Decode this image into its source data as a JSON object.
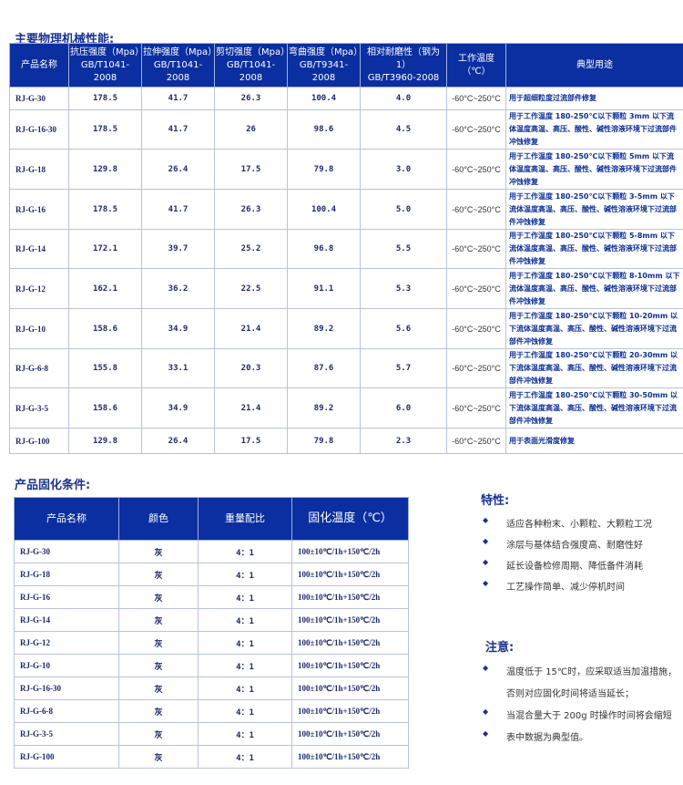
{
  "section1_title": "主要物理机械性能:",
  "table1": {
    "headers": [
      [
        "产品名称",
        ""
      ],
      [
        "抗压强度（Mpa）",
        "GB/T1041-2008"
      ],
      [
        "拉伸强度（Mpa）",
        "GB/T1041-2008"
      ],
      [
        "剪切强度（Mpa）",
        "GB/T1041-2008"
      ],
      [
        "弯曲强度（Mpa）",
        "GB/T9341-2008"
      ],
      [
        "相对耐磨性（钢为 1）",
        "GB/T3960-2008"
      ],
      [
        "工作温度",
        "（℃）"
      ],
      [
        "典型用途",
        ""
      ]
    ],
    "rows": [
      [
        "RJ-G-30",
        "178.5",
        "41.7",
        "26.3",
        "100.4",
        "4.0",
        "-60°C~250°C",
        "用于超细粒度过流部件修复"
      ],
      [
        "RJ-G-16-30",
        "178.5",
        "41.7",
        "26",
        "98.6",
        "4.5",
        "-60°C~250°C",
        "用于工作温度 180-250℃以下颗粒 3mm 以下流体温度高温、高压、酸性、碱性溶液环境下过流部件冲蚀修复"
      ],
      [
        "RJ-G-18",
        "129.8",
        "26.4",
        "17.5",
        "79.8",
        "3.0",
        "-60°C~250°C",
        "用于工作温度 180-250℃以下颗粒 5mm 以下流体温度高温、高压、酸性、碱性溶液环境下过流部件冲蚀修复"
      ],
      [
        "RJ-G-16",
        "178.5",
        "41.7",
        "26.3",
        "100.4",
        "5.0",
        "-60°C~250°C",
        "用于工作温度 180-250℃以下颗粒 3-5mm 以下流体温度高温、高压、酸性、碱性溶液环境下过流部件冲蚀修复"
      ],
      [
        "RJ-G-14",
        "172.1",
        "39.7",
        "25.2",
        "96.8",
        "5.5",
        "-60°C~250°C",
        "用于工作温度 180-250℃以下颗粒 5-8mm 以下流体温度高温、高压、酸性、碱性溶液环境下过流部件冲蚀修复"
      ],
      [
        "RJ-G-12",
        "162.1",
        "36.2",
        "22.5",
        "91.1",
        "5.3",
        "-60°C~250°C",
        "用于工作温度 180-250℃以下颗粒 8-10mm 以下流体温度高温、高压、酸性、碱性溶液环境下过流部件冲蚀修复"
      ],
      [
        "RJ-G-10",
        "158.6",
        "34.9",
        "21.4",
        "89.2",
        "5.6",
        "-60°C~250°C",
        "用于工作温度 180-250℃以下颗粒 10-20mm 以下流体温度高温、高压、酸性、碱性溶液环境下过流部件冲蚀修复"
      ],
      [
        "RJ-G-6-8",
        "155.8",
        "33.1",
        "20.3",
        "87.6",
        "5.7",
        "-60°C~250°C",
        "用于工作温度 180-250℃以下颗粒 20-30mm 以下流体温度高温、高压、酸性、碱性溶液环境下过流部件冲蚀修复"
      ],
      [
        "RJ-G-3-5",
        "158.6",
        "34.9",
        "21.4",
        "89.2",
        "6.0",
        "-60°C~250°C",
        "用于工作温度 180-250℃以下颗粒 30-50mm 以下流体温度高温、高压、酸性、碱性溶液环境下过流部件冲蚀修复"
      ],
      [
        "RJ-G-100",
        "129.8",
        "26.4",
        "17.5",
        "79.8",
        "2.3",
        "-60°C~250°C",
        "用于表面光滑度修复"
      ]
    ]
  },
  "section2_title": "产品固化条件:",
  "table2": {
    "headers": [
      "产品名称",
      "颜色",
      "重量配比",
      "固化温度（℃）"
    ],
    "rows": [
      [
        "RJ-G-30",
        "灰",
        "4：1",
        "100±10℃/1h+150℃/2h"
      ],
      [
        "RJ-G-18",
        "灰",
        "4：1",
        "100±10℃/1h+150℃/2h"
      ],
      [
        "RJ-G-16",
        "灰",
        "4：1",
        "100±10℃/1h+150℃/2h"
      ],
      [
        "RJ-G-14",
        "灰",
        "4：1",
        "100±10℃/1h+150℃/2h"
      ],
      [
        "RJ-G-12",
        "灰",
        "4：1",
        "100±10℃/1h+150℃/2h"
      ],
      [
        "RJ-G-10",
        "灰",
        "4：1",
        "100±10℃/1h+150℃/2h"
      ],
      [
        "RJ-G-16-30",
        "灰",
        "4：1",
        "100±10℃/1h+150℃/2h"
      ],
      [
        "RJ-G-6-8",
        "灰",
        "4：1",
        "100±10℃/1h+150℃/2h"
      ],
      [
        "RJ-G-3-5",
        "灰",
        "4：1",
        "100±10℃/1h+150℃/2h"
      ],
      [
        "RJ-G-100",
        "灰",
        "4：1",
        "100±10℃/1h+150℃/2h"
      ]
    ]
  },
  "features": {
    "title": "特性:",
    "items": [
      "适应各种粉末、小颗粒、大颗粒工况",
      "涂层与基体结合强度高、耐磨性好",
      "延长设备检修周期、降低备件消耗",
      "工艺操作简单、减少停机时间"
    ]
  },
  "notes": {
    "title": "注意:",
    "items": [
      "温度低于 15℃时，应采取适当加温措施，",
      "否则对应固化时间将适当延长；",
      "当混合量大于 200g 时操作时间将会缩短",
      "表中数据为典型值。"
    ]
  },
  "colors": {
    "header_bg": "#0b2fa0",
    "title": "#1a3390"
  }
}
